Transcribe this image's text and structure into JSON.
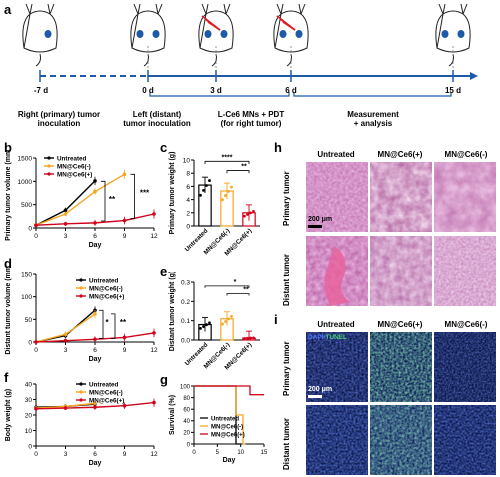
{
  "panels": {
    "a": "a",
    "b": "b",
    "c": "c",
    "d": "d",
    "e": "e",
    "f": "f",
    "g": "g",
    "h": "h",
    "i": "i"
  },
  "timeline": {
    "ticks": [
      "-7 d",
      "0 d",
      "3 d",
      "6 d",
      "15 d"
    ],
    "events": [
      {
        "text": "Right (primary) tumor\ninoculation"
      },
      {
        "text": "Left (distant)\ntumor inoculation"
      },
      {
        "text": "L-Ce6 MNs + PDT\n(for right tumor)"
      },
      {
        "text": "Measurement\n+ analysis"
      }
    ]
  },
  "groups": {
    "untreated": "Untreated",
    "minus": "MN@Ce6(-)",
    "plus": "MN@Ce6(+)"
  },
  "colors": {
    "untreated": "#000000",
    "minus": "#f5a623",
    "plus": "#d0021b",
    "timeline": "#1f5aa6",
    "stain_he": "#d9a0c8",
    "stain_dapi": "#1b2f8f",
    "stain_tunel": "#4fd07a"
  },
  "chart_data": [
    {
      "id": "b",
      "type": "line",
      "xlabel": "Day",
      "ylabel": "Primary tumor volume (mm³)",
      "x": [
        0,
        3,
        6,
        9,
        12
      ],
      "xticks": [
        "0",
        "3",
        "6",
        "9",
        "12"
      ],
      "yticks": [
        "0",
        "500",
        "1000",
        "1500"
      ],
      "ylim": [
        0,
        1500
      ],
      "series": [
        {
          "name": "Untreated",
          "x": [
            0,
            3,
            6
          ],
          "values": [
            60,
            380,
            1010
          ]
        },
        {
          "name": "MN@Ce6(-)",
          "x": [
            0,
            3,
            6,
            9
          ],
          "values": [
            60,
            300,
            780,
            1150
          ]
        },
        {
          "name": "MN@Ce6(+)",
          "x": [
            0,
            3,
            6,
            9,
            12
          ],
          "values": [
            60,
            90,
            110,
            160,
            300
          ]
        }
      ],
      "annotations": [
        "**",
        "***"
      ]
    },
    {
      "id": "c",
      "type": "bar",
      "ylabel": "Primary tumor weight (g)",
      "categories": [
        "Untreated",
        "MN@Ce6(-)",
        "MN@Ce6(+)"
      ],
      "values": [
        6.2,
        5.3,
        2.0
      ],
      "yticks": [
        "0",
        "2",
        "4",
        "6",
        "8",
        "10"
      ],
      "ylim": [
        0,
        10
      ],
      "annotations": [
        "****",
        "**"
      ]
    },
    {
      "id": "d",
      "type": "line",
      "xlabel": "Day",
      "ylabel": "Distant tumor volume (mm³)",
      "x": [
        0,
        3,
        6,
        9,
        12
      ],
      "xticks": [
        "0",
        "3",
        "6",
        "9",
        "12"
      ],
      "yticks": [
        "0",
        "50",
        "100",
        "150"
      ],
      "ylim": [
        0,
        150
      ],
      "series": [
        {
          "name": "Untreated",
          "x": [
            0,
            3,
            6
          ],
          "values": [
            0,
            14,
            70
          ]
        },
        {
          "name": "MN@Ce6(-)",
          "x": [
            0,
            3,
            6
          ],
          "values": [
            0,
            17,
            62
          ]
        },
        {
          "name": "MN@Ce6(+)",
          "x": [
            0,
            3,
            6,
            9,
            12
          ],
          "values": [
            0,
            3,
            6,
            10,
            20
          ]
        }
      ],
      "annotations": [
        "*",
        "**"
      ]
    },
    {
      "id": "e",
      "type": "bar",
      "ylabel": "Distant tumor weight (g)",
      "categories": [
        "Untreated",
        "MN@Ce6(-)",
        "MN@Ce6(+)"
      ],
      "values": [
        0.08,
        0.11,
        0.01
      ],
      "yticks": [
        "0.0",
        "0.1",
        "0.2",
        "0.3"
      ],
      "ylim": [
        0,
        0.3
      ],
      "annotations": [
        "*",
        "**"
      ]
    },
    {
      "id": "f",
      "type": "line",
      "xlabel": "Day",
      "ylabel": "Body weight (g)",
      "x": [
        0,
        3,
        6,
        9,
        12
      ],
      "xticks": [
        "0",
        "3",
        "6",
        "9",
        "12"
      ],
      "yticks": [
        "0",
        "10",
        "20",
        "30",
        "40"
      ],
      "ylim": [
        0,
        40
      ],
      "series": [
        {
          "name": "Untreated",
          "x": [
            0,
            3,
            6
          ],
          "values": [
            25,
            25.5,
            27
          ]
        },
        {
          "name": "MN@Ce6(-)",
          "x": [
            0,
            3,
            6
          ],
          "values": [
            24.5,
            25.5,
            27.5
          ]
        },
        {
          "name": "MN@Ce6(+)",
          "x": [
            0,
            3,
            6,
            9,
            12
          ],
          "values": [
            24,
            24.5,
            25,
            26,
            28
          ]
        }
      ]
    },
    {
      "id": "g",
      "type": "line",
      "xlabel": "Day",
      "ylabel": "Survival (%)",
      "xticks": [
        "0",
        "5",
        "10",
        "15"
      ],
      "yticks": [
        "0",
        "20",
        "40",
        "60",
        "80",
        "100"
      ],
      "ylim": [
        0,
        100
      ],
      "xlim": [
        0,
        15
      ],
      "series": [
        {
          "name": "Untreated",
          "steps": [
            [
              0,
              100
            ],
            [
              9,
              100
            ],
            [
              9,
              0
            ],
            [
              10,
              0
            ]
          ]
        },
        {
          "name": "MN@Ce6(-)",
          "steps": [
            [
              0,
              100
            ],
            [
              9,
              100
            ],
            [
              9,
              50
            ],
            [
              10.5,
              50
            ],
            [
              10.5,
              0
            ],
            [
              11,
              0
            ]
          ]
        },
        {
          "name": "MN@Ce6(+)",
          "steps": [
            [
              0,
              100
            ],
            [
              12,
              100
            ],
            [
              12,
              85
            ],
            [
              15,
              85
            ]
          ]
        }
      ]
    }
  ],
  "histology": {
    "h": {
      "columns": [
        "Untreated",
        "MN@Ce6(+)",
        "MN@Ce6(-)"
      ],
      "rows": [
        "Primary tumor",
        "Distant tumor"
      ],
      "scale": "200 μm"
    },
    "i": {
      "columns": [
        "Untreated",
        "MN@Ce6(+)",
        "MN@Ce6(-)"
      ],
      "rows": [
        "Primary tumor",
        "Distant tumor"
      ],
      "scale": "200 μm",
      "legend_dapi": "DAPI/",
      "legend_tunel": "TUNEL"
    }
  }
}
